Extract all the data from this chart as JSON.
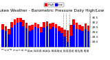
{
  "title": "Milwaukee Weather - Barometric Pressure Daily High/Low",
  "high_color": "#ff0000",
  "low_color": "#0000ff",
  "background_color": "#ffffff",
  "ylim": [
    28.7,
    30.75
  ],
  "yticks": [
    29.0,
    29.3,
    29.6,
    29.9,
    30.2,
    30.5
  ],
  "ytick_labels": [
    "29.0",
    "29.3",
    "29.6",
    "29.9",
    "30.2",
    "30.5"
  ],
  "days": [
    1,
    2,
    3,
    4,
    5,
    6,
    7,
    8,
    9,
    10,
    11,
    12,
    13,
    14,
    15,
    16,
    17,
    18,
    19,
    20,
    21,
    22,
    23,
    24,
    25,
    26,
    27,
    28,
    29,
    30
  ],
  "highs": [
    30.08,
    29.95,
    29.78,
    30.22,
    30.38,
    30.45,
    30.48,
    30.32,
    30.15,
    29.98,
    30.05,
    30.18,
    30.08,
    29.92,
    30.22,
    30.25,
    30.12,
    30.18,
    30.08,
    29.95,
    29.88,
    29.75,
    29.7,
    30.05,
    30.38,
    30.15,
    30.05,
    29.95,
    30.12,
    29.98
  ],
  "lows": [
    29.75,
    29.68,
    29.45,
    29.88,
    30.05,
    30.15,
    30.22,
    29.95,
    29.82,
    29.65,
    29.75,
    29.92,
    29.82,
    29.58,
    29.88,
    29.95,
    29.78,
    29.92,
    29.82,
    29.65,
    29.52,
    29.32,
    28.98,
    29.38,
    30.02,
    29.78,
    29.75,
    29.65,
    29.78,
    29.65
  ],
  "dashed_vlines_x": [
    20.5,
    21.5,
    22.5
  ],
  "tick_fontsize": 3.0,
  "title_fontsize": 4.2,
  "legend_fontsize": 3.0,
  "bar_width": 0.85
}
